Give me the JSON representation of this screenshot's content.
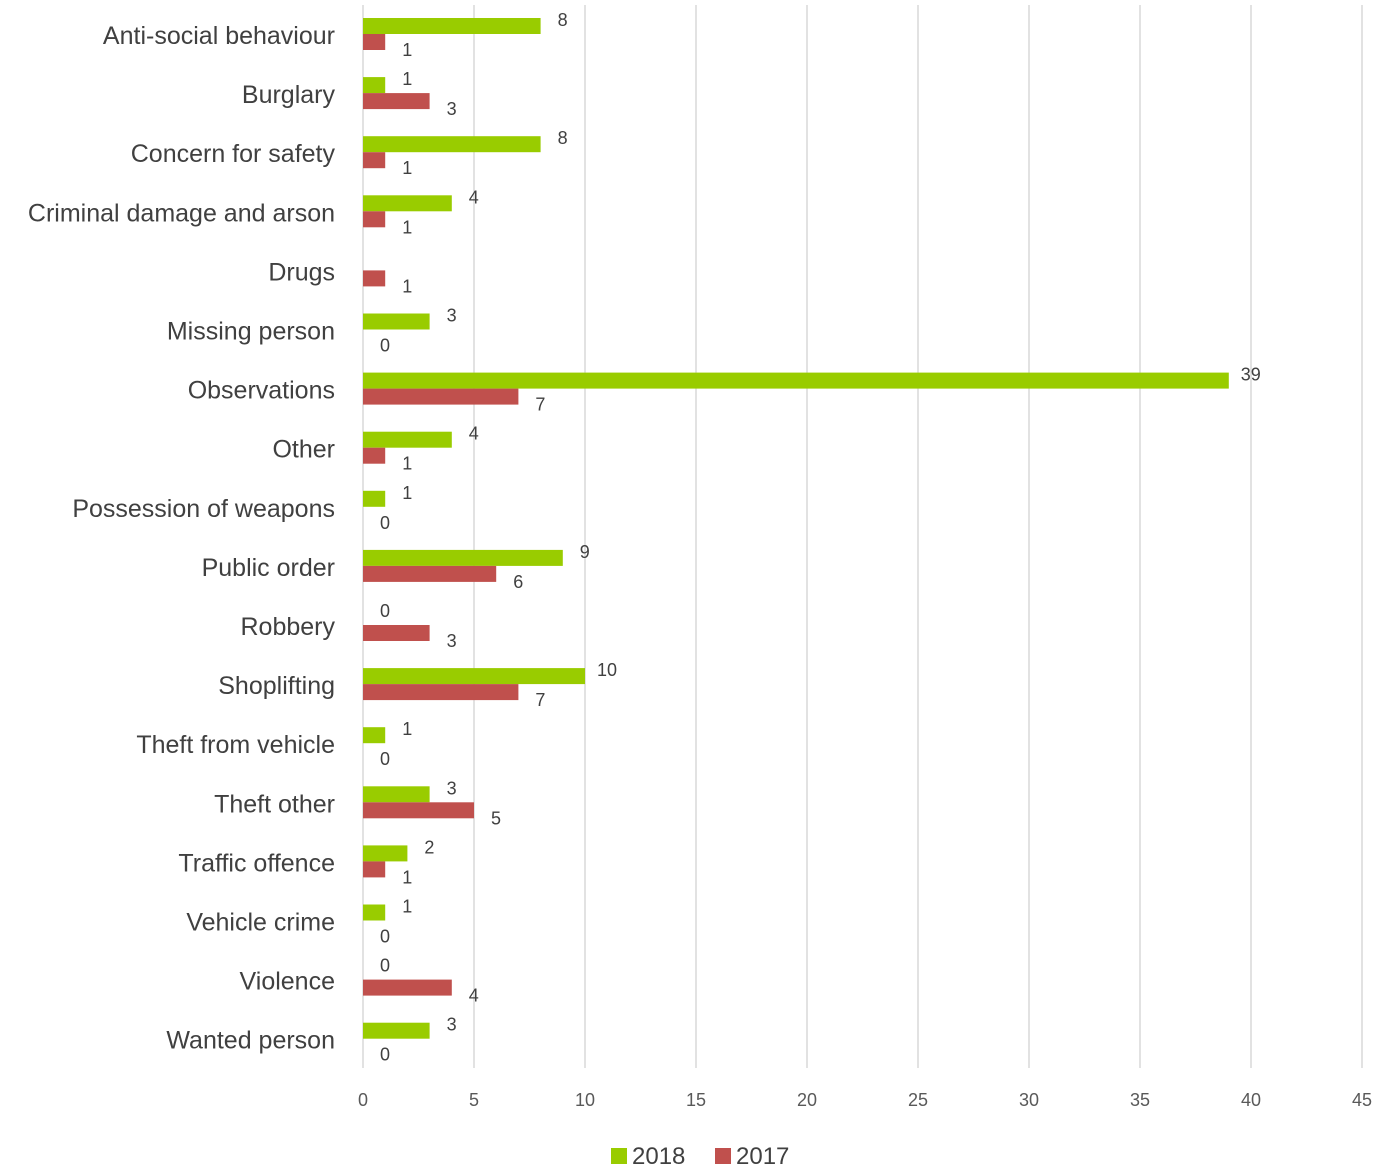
{
  "chart_data": {
    "type": "bar",
    "orientation": "horizontal",
    "categories": [
      "Anti-social behaviour",
      "Burglary",
      "Concern for safety",
      "Criminal damage and arson",
      "Drugs",
      "Missing person",
      "Observations",
      "Other",
      "Possession of weapons",
      "Public order",
      "Robbery",
      "Shoplifting",
      "Theft from vehicle",
      "Theft other",
      "Traffic offence",
      "Vehicle crime",
      "Violence",
      "Wanted person"
    ],
    "series": [
      {
        "name": "2018",
        "color": "#99cc00",
        "values": [
          8,
          1,
          8,
          4,
          null,
          3,
          39,
          4,
          1,
          9,
          0,
          10,
          1,
          3,
          2,
          1,
          0,
          3
        ]
      },
      {
        "name": "2017",
        "color": "#c0504d",
        "values": [
          1,
          3,
          1,
          1,
          1,
          0,
          7,
          1,
          0,
          6,
          3,
          7,
          0,
          5,
          1,
          0,
          4,
          0
        ]
      }
    ],
    "xlim": [
      0,
      45
    ],
    "xticks": [
      0,
      5,
      10,
      15,
      20,
      25,
      30,
      35,
      40,
      45
    ],
    "grid": true,
    "legend_position": "bottom"
  }
}
